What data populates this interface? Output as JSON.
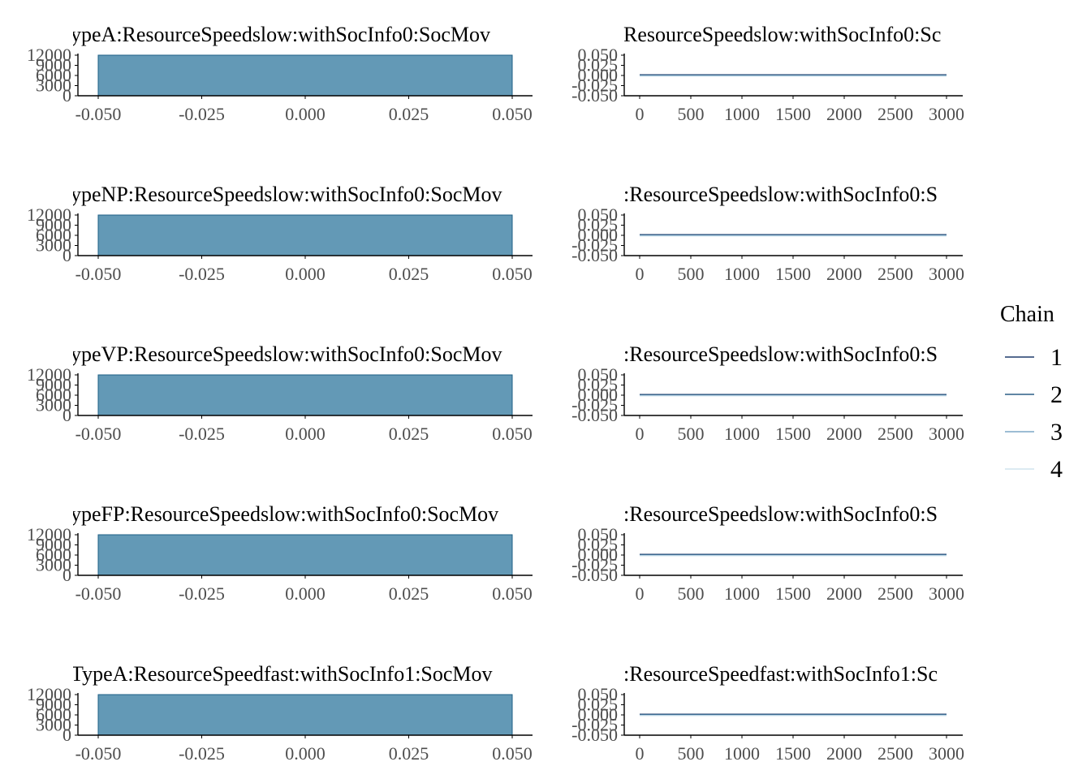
{
  "legend": {
    "title": "Chain",
    "placement": "right",
    "entries": [
      {
        "label": "1",
        "color": "#1f3b6b"
      },
      {
        "label": "2",
        "color": "#2c5f86"
      },
      {
        "label": "3",
        "color": "#7ba7c6"
      },
      {
        "label": "4",
        "color": "#d0e3ee"
      }
    ]
  },
  "colors": {
    "hist_fill": "#6399b6",
    "hist_stroke": "#1d5f86",
    "axis": "#000000",
    "tick_text": "#4d4d4d",
    "title_text": "#000000"
  },
  "chart_data": [
    {
      "type": "bar",
      "title": "ypeA:ResourceSpeedslow:withSocInfo0:SocMov",
      "xlim": [
        -0.05,
        0.05
      ],
      "ylim": [
        0,
        12000
      ],
      "x_ticks": [
        "-0.050",
        "-0.025",
        "0.000",
        "0.025",
        "0.050"
      ],
      "y_ticks": [
        "0",
        "3000",
        "6000",
        "9000",
        "12000"
      ],
      "bins": [
        {
          "x0": -0.05,
          "x1": 0.05,
          "count": 12000
        }
      ]
    },
    {
      "type": "line",
      "title": "ResourceSpeedslow:withSocInfo0:Sc",
      "xlim": [
        0,
        3000
      ],
      "ylim": [
        -0.05,
        0.05
      ],
      "x_ticks": [
        "0",
        "500",
        "1000",
        "1500",
        "2000",
        "2500",
        "3000"
      ],
      "y_ticks": [
        "-0.050",
        "-0.025",
        "0.000",
        "0.025",
        "0.050"
      ],
      "series": [
        {
          "name": "1",
          "x": [
            0,
            3000
          ],
          "y": [
            0,
            0
          ]
        },
        {
          "name": "2",
          "x": [
            0,
            3000
          ],
          "y": [
            0,
            0
          ]
        },
        {
          "name": "3",
          "x": [
            0,
            3000
          ],
          "y": [
            0,
            0
          ]
        },
        {
          "name": "4",
          "x": [
            0,
            3000
          ],
          "y": [
            0,
            0
          ]
        }
      ]
    },
    {
      "type": "bar",
      "title": "ypeNP:ResourceSpeedslow:withSocInfo0:SocMov",
      "xlim": [
        -0.05,
        0.05
      ],
      "ylim": [
        0,
        12000
      ],
      "x_ticks": [
        "-0.050",
        "-0.025",
        "0.000",
        "0.025",
        "0.050"
      ],
      "y_ticks": [
        "0",
        "3000",
        "6000",
        "9000",
        "12000"
      ],
      "bins": [
        {
          "x0": -0.05,
          "x1": 0.05,
          "count": 12000
        }
      ]
    },
    {
      "type": "line",
      "title": ":ResourceSpeedslow:withSocInfo0:S",
      "xlim": [
        0,
        3000
      ],
      "ylim": [
        -0.05,
        0.05
      ],
      "x_ticks": [
        "0",
        "500",
        "1000",
        "1500",
        "2000",
        "2500",
        "3000"
      ],
      "y_ticks": [
        "-0.050",
        "-0.025",
        "0.000",
        "0.025",
        "0.050"
      ],
      "series": [
        {
          "name": "1",
          "x": [
            0,
            3000
          ],
          "y": [
            0,
            0
          ]
        },
        {
          "name": "2",
          "x": [
            0,
            3000
          ],
          "y": [
            0,
            0
          ]
        },
        {
          "name": "3",
          "x": [
            0,
            3000
          ],
          "y": [
            0,
            0
          ]
        },
        {
          "name": "4",
          "x": [
            0,
            3000
          ],
          "y": [
            0,
            0
          ]
        }
      ]
    },
    {
      "type": "bar",
      "title": "ypeVP:ResourceSpeedslow:withSocInfo0:SocMov",
      "xlim": [
        -0.05,
        0.05
      ],
      "ylim": [
        0,
        12000
      ],
      "x_ticks": [
        "-0.050",
        "-0.025",
        "0.000",
        "0.025",
        "0.050"
      ],
      "y_ticks": [
        "0",
        "3000",
        "6000",
        "9000",
        "12000"
      ],
      "bins": [
        {
          "x0": -0.05,
          "x1": 0.05,
          "count": 12000
        }
      ]
    },
    {
      "type": "line",
      "title": ":ResourceSpeedslow:withSocInfo0:S",
      "xlim": [
        0,
        3000
      ],
      "ylim": [
        -0.05,
        0.05
      ],
      "x_ticks": [
        "0",
        "500",
        "1000",
        "1500",
        "2000",
        "2500",
        "3000"
      ],
      "y_ticks": [
        "-0.050",
        "-0.025",
        "0.000",
        "0.025",
        "0.050"
      ],
      "series": [
        {
          "name": "1",
          "x": [
            0,
            3000
          ],
          "y": [
            0,
            0
          ]
        },
        {
          "name": "2",
          "x": [
            0,
            3000
          ],
          "y": [
            0,
            0
          ]
        },
        {
          "name": "3",
          "x": [
            0,
            3000
          ],
          "y": [
            0,
            0
          ]
        },
        {
          "name": "4",
          "x": [
            0,
            3000
          ],
          "y": [
            0,
            0
          ]
        }
      ]
    },
    {
      "type": "bar",
      "title": "ypeFP:ResourceSpeedslow:withSocInfo0:SocMov",
      "xlim": [
        -0.05,
        0.05
      ],
      "ylim": [
        0,
        12000
      ],
      "x_ticks": [
        "-0.050",
        "-0.025",
        "0.000",
        "0.025",
        "0.050"
      ],
      "y_ticks": [
        "0",
        "3000",
        "6000",
        "9000",
        "12000"
      ],
      "bins": [
        {
          "x0": -0.05,
          "x1": 0.05,
          "count": 12000
        }
      ]
    },
    {
      "type": "line",
      "title": ":ResourceSpeedslow:withSocInfo0:S",
      "xlim": [
        0,
        3000
      ],
      "ylim": [
        -0.05,
        0.05
      ],
      "x_ticks": [
        "0",
        "500",
        "1000",
        "1500",
        "2000",
        "2500",
        "3000"
      ],
      "y_ticks": [
        "-0.050",
        "-0.025",
        "0.000",
        "0.025",
        "0.050"
      ],
      "series": [
        {
          "name": "1",
          "x": [
            0,
            3000
          ],
          "y": [
            0,
            0
          ]
        },
        {
          "name": "2",
          "x": [
            0,
            3000
          ],
          "y": [
            0,
            0
          ]
        },
        {
          "name": "3",
          "x": [
            0,
            3000
          ],
          "y": [
            0,
            0
          ]
        },
        {
          "name": "4",
          "x": [
            0,
            3000
          ],
          "y": [
            0,
            0
          ]
        }
      ]
    },
    {
      "type": "bar",
      "title": "TypeA:ResourceSpeedfast:withSocInfo1:SocMov",
      "xlim": [
        -0.05,
        0.05
      ],
      "ylim": [
        0,
        12000
      ],
      "x_ticks": [
        "-0.050",
        "-0.025",
        "0.000",
        "0.025",
        "0.050"
      ],
      "y_ticks": [
        "0",
        "3000",
        "6000",
        "9000",
        "12000"
      ],
      "bins": [
        {
          "x0": -0.05,
          "x1": 0.05,
          "count": 12000
        }
      ]
    },
    {
      "type": "line",
      "title": ":ResourceSpeedfast:withSocInfo1:Sc",
      "xlim": [
        0,
        3000
      ],
      "ylim": [
        -0.05,
        0.05
      ],
      "x_ticks": [
        "0",
        "500",
        "1000",
        "1500",
        "2000",
        "2500",
        "3000"
      ],
      "y_ticks": [
        "-0.050",
        "-0.025",
        "0.000",
        "0.025",
        "0.050"
      ],
      "series": [
        {
          "name": "1",
          "x": [
            0,
            3000
          ],
          "y": [
            0,
            0
          ]
        },
        {
          "name": "2",
          "x": [
            0,
            3000
          ],
          "y": [
            0,
            0
          ]
        },
        {
          "name": "3",
          "x": [
            0,
            3000
          ],
          "y": [
            0,
            0
          ]
        },
        {
          "name": "4",
          "x": [
            0,
            3000
          ],
          "y": [
            0,
            0
          ]
        }
      ]
    }
  ]
}
